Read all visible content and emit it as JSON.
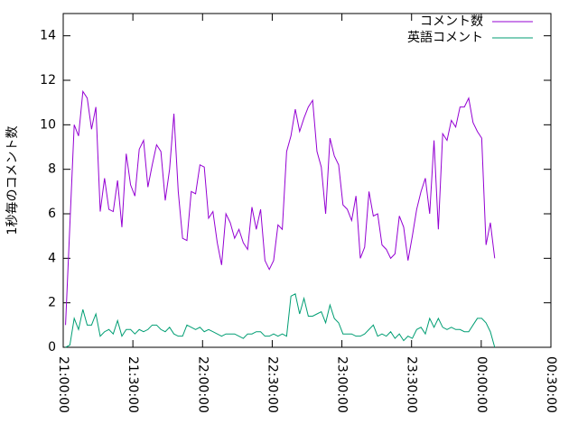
{
  "chart_data": {
    "type": "line",
    "ylabel": "1秒毎のコメント数",
    "x": [
      60,
      172,
      284,
      396,
      508,
      620,
      732,
      844,
      956,
      1068,
      1180,
      1292,
      1404,
      1516,
      1628,
      1740,
      1852,
      1964,
      2076,
      2188,
      2300,
      2412,
      2524,
      2636,
      2748,
      2860,
      2972,
      3084,
      3196,
      3308,
      3420,
      3532,
      3644,
      3756,
      3868,
      3980,
      4092,
      4204,
      4316,
      4428,
      4540,
      4652,
      4764,
      4876,
      4988,
      5100,
      5212,
      5324,
      5436,
      5548,
      5660,
      5772,
      5884,
      5996,
      6108,
      6220,
      6332,
      6444,
      6556,
      6668,
      6780,
      6892,
      7004,
      7116,
      7228,
      7340,
      7452,
      7564,
      7676,
      7788,
      7900,
      8012,
      8124,
      8236,
      8348,
      8460,
      8572,
      8684,
      8796,
      8908,
      9020,
      9132,
      9244,
      9356,
      9468,
      9580,
      9692,
      9804,
      9916,
      10028,
      10140,
      10252,
      10364,
      10476,
      10588,
      10700,
      10812,
      10924,
      11036,
      11148
    ],
    "series": [
      {
        "name": "コメント数",
        "color": "#9400d3",
        "values": [
          1.0,
          5.5,
          10,
          9.5,
          11.5,
          11.2,
          9.8,
          10.8,
          6.1,
          7.6,
          6.2,
          6.1,
          7.5,
          5.4,
          8.7,
          7.3,
          6.8,
          8.9,
          9.3,
          7.2,
          8.2,
          9.1,
          8.8,
          6.6,
          8.0,
          10.5,
          7.0,
          4.9,
          4.8,
          7.0,
          6.9,
          8.2,
          8.1,
          5.8,
          6.1,
          4.7,
          3.7,
          6.0,
          5.6,
          4.9,
          5.3,
          4.7,
          4.4,
          6.3,
          5.3,
          6.2,
          3.9,
          3.5,
          3.9,
          5.5,
          5.3,
          8.8,
          9.5,
          10.7,
          9.7,
          10.3,
          10.8,
          11.1,
          8.8,
          8.1,
          6.0,
          9.4,
          8.6,
          8.2,
          6.4,
          6.2,
          5.7,
          6.8,
          4.0,
          4.5,
          7.0,
          5.9,
          6.0,
          4.6,
          4.4,
          4.0,
          4.2,
          5.9,
          5.4,
          3.9,
          5.0,
          6.2,
          7.0,
          7.6,
          6.0,
          9.3,
          5.3,
          9.6,
          9.3,
          10.2,
          9.9,
          10.8,
          10.8,
          11.2,
          10.1,
          9.7,
          9.4,
          4.6,
          5.6,
          4.0
        ]
      },
      {
        "name": "英語コメント",
        "color": "#009e73",
        "values": [
          0,
          0.1,
          1.3,
          0.8,
          1.7,
          1.0,
          1.0,
          1.5,
          0.5,
          0.7,
          0.8,
          0.6,
          1.2,
          0.5,
          0.8,
          0.8,
          0.6,
          0.8,
          0.7,
          0.8,
          1.0,
          1.0,
          0.8,
          0.7,
          0.9,
          0.6,
          0.5,
          0.5,
          1.0,
          0.9,
          0.8,
          0.9,
          0.7,
          0.8,
          0.7,
          0.6,
          0.5,
          0.6,
          0.6,
          0.6,
          0.5,
          0.4,
          0.6,
          0.6,
          0.7,
          0.7,
          0.5,
          0.5,
          0.6,
          0.5,
          0.6,
          0.5,
          2.3,
          2.4,
          1.5,
          2.2,
          1.4,
          1.4,
          1.5,
          1.6,
          1.1,
          1.9,
          1.3,
          1.1,
          0.6,
          0.6,
          0.6,
          0.5,
          0.5,
          0.6,
          0.8,
          1.0,
          0.5,
          0.6,
          0.5,
          0.7,
          0.4,
          0.6,
          0.3,
          0.5,
          0.4,
          0.8,
          0.9,
          0.6,
          1.3,
          0.9,
          1.3,
          0.9,
          0.8,
          0.9,
          0.8,
          0.8,
          0.7,
          0.7,
          1.0,
          1.3,
          1.3,
          1.1,
          0.7,
          0.0
        ]
      }
    ],
    "xlim": [
      0,
      12600
    ],
    "xticks": [
      {
        "value": 0,
        "label": "21:00:00"
      },
      {
        "value": 1800,
        "label": "21:30:00"
      },
      {
        "value": 3600,
        "label": "22:00:00"
      },
      {
        "value": 5400,
        "label": "22:30:00"
      },
      {
        "value": 7200,
        "label": "23:00:00"
      },
      {
        "value": 9000,
        "label": "23:30:00"
      },
      {
        "value": 10800,
        "label": "00:00:00"
      },
      {
        "value": 12600,
        "label": "00:30:00"
      }
    ],
    "ylim": [
      0,
      15
    ],
    "yticks": [
      0,
      2,
      4,
      6,
      8,
      10,
      12,
      14
    ],
    "legend": "top-right"
  }
}
